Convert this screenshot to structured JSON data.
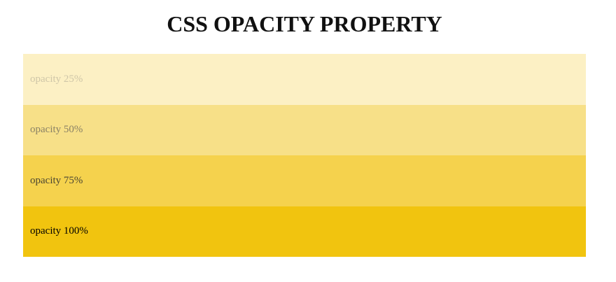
{
  "page": {
    "title": "CSS OPACITY PROPERTY"
  },
  "bands": [
    {
      "label": "opacity 25%",
      "opacity": 0.25,
      "color": "#f1c40f"
    },
    {
      "label": "opacity 50%",
      "opacity": 0.5,
      "color": "#f1c40f"
    },
    {
      "label": "opacity 75%",
      "opacity": 0.75,
      "color": "#f1c40f"
    },
    {
      "label": "opacity 100%",
      "opacity": 1.0,
      "color": "#f1c40f"
    }
  ]
}
